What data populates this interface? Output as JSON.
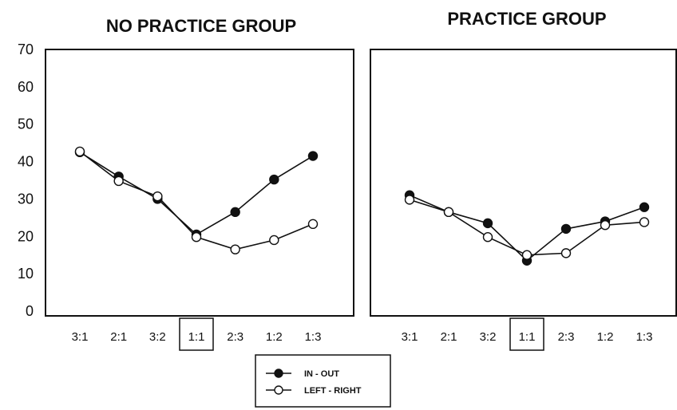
{
  "chart_data": [
    {
      "type": "line",
      "title": "NO PRACTICE GROUP",
      "categories": [
        "3:1",
        "2:1",
        "3:2",
        "1:1",
        "2:3",
        "1:2",
        "1:3"
      ],
      "boxed_category": "1:1",
      "ylim": [
        0,
        70
      ],
      "yticks": [
        0,
        10,
        20,
        30,
        40,
        50,
        60,
        70
      ],
      "series": [
        {
          "name": "IN - OUT",
          "marker": "filled-circle",
          "values": [
            42.5,
            36,
            30,
            20.5,
            26.5,
            35.2,
            41.5
          ]
        },
        {
          "name": "LEFT - RIGHT",
          "marker": "open-circle",
          "values": [
            42.7,
            34.8,
            30.7,
            19.8,
            16.5,
            19.0,
            23.3
          ]
        }
      ]
    },
    {
      "type": "line",
      "title": "PRACTICE GROUP",
      "categories": [
        "3:1",
        "2:1",
        "3:2",
        "1:1",
        "2:3",
        "1:2",
        "1:3"
      ],
      "boxed_category": "1:1",
      "ylim": [
        0,
        70
      ],
      "series": [
        {
          "name": "IN - OUT",
          "marker": "filled-circle",
          "values": [
            31.0,
            26.5,
            23.5,
            13.5,
            22.0,
            24.0,
            27.8
          ]
        },
        {
          "name": "LEFT - RIGHT",
          "marker": "open-circle",
          "values": [
            29.8,
            26.5,
            19.8,
            15.0,
            15.5,
            23.0,
            23.8
          ]
        }
      ]
    }
  ],
  "legend": {
    "items": [
      {
        "label": "IN - OUT",
        "marker": "filled-circle"
      },
      {
        "label": "LEFT - RIGHT",
        "marker": "open-circle"
      }
    ]
  }
}
